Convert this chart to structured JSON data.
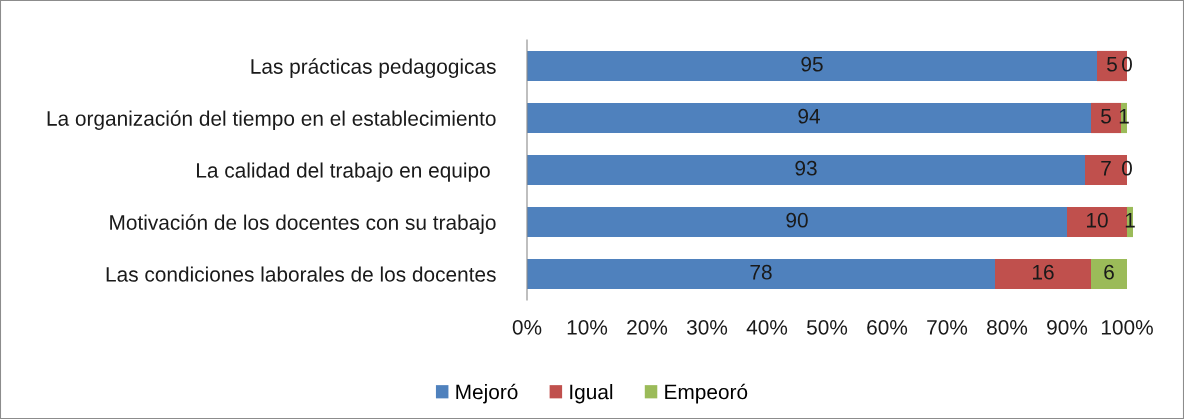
{
  "chart_data": {
    "type": "bar",
    "orientation": "horizontal",
    "stacked": true,
    "data_labels": true,
    "categories": [
      "Las prácticas pedagogicas",
      "La organización del tiempo en el establecimiento",
      "La calidad del trabajo en equipo ",
      "Motivación de los docentes con su trabajo",
      "Las condiciones laborales de los docentes"
    ],
    "series": [
      {
        "name": "Mejoró",
        "color": "#4f81bd",
        "values": [
          95,
          94,
          93,
          90,
          78
        ]
      },
      {
        "name": "Igual",
        "color": "#c0504d",
        "values": [
          5,
          5,
          7,
          10,
          16
        ]
      },
      {
        "name": "Empeoró",
        "color": "#9bbb59",
        "values": [
          0,
          1,
          0,
          1,
          6
        ]
      }
    ],
    "xlim": [
      0,
      101
    ],
    "xticks": [
      {
        "value": 0,
        "label": "0%"
      },
      {
        "value": 10,
        "label": "10%"
      },
      {
        "value": 20,
        "label": "20%"
      },
      {
        "value": 30,
        "label": "30%"
      },
      {
        "value": 40,
        "label": "40%"
      },
      {
        "value": 50,
        "label": "50%"
      },
      {
        "value": 60,
        "label": "60%"
      },
      {
        "value": 70,
        "label": "70%"
      },
      {
        "value": 80,
        "label": "80%"
      },
      {
        "value": 90,
        "label": "90%"
      },
      {
        "value": 100,
        "label": "100%"
      }
    ],
    "grid": false,
    "legend": "bottom"
  }
}
